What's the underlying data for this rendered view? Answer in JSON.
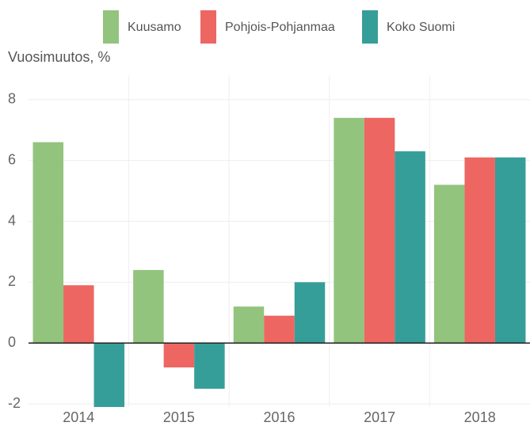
{
  "chart_data": {
    "type": "bar",
    "y_label": "Vuosimuutos, %",
    "categories": [
      "2014",
      "2015",
      "2016",
      "2017",
      "2018"
    ],
    "series": [
      {
        "name": "Kuusamo",
        "color": "#92c47e",
        "values": [
          6.6,
          2.4,
          1.2,
          7.4,
          5.2
        ]
      },
      {
        "name": "Pohjois-Pohjanmaa",
        "color": "#ed6662",
        "values": [
          1.9,
          -0.8,
          0.9,
          7.4,
          6.1
        ]
      },
      {
        "name": "Koko Suomi",
        "color": "#369e98",
        "values": [
          -2.1,
          -1.5,
          2.0,
          6.3,
          6.1
        ]
      }
    ],
    "ylim": [
      -2.1,
      8.8
    ],
    "yticks": [
      -2,
      0,
      2,
      4,
      6,
      8
    ],
    "grid": true,
    "legend": "top"
  }
}
